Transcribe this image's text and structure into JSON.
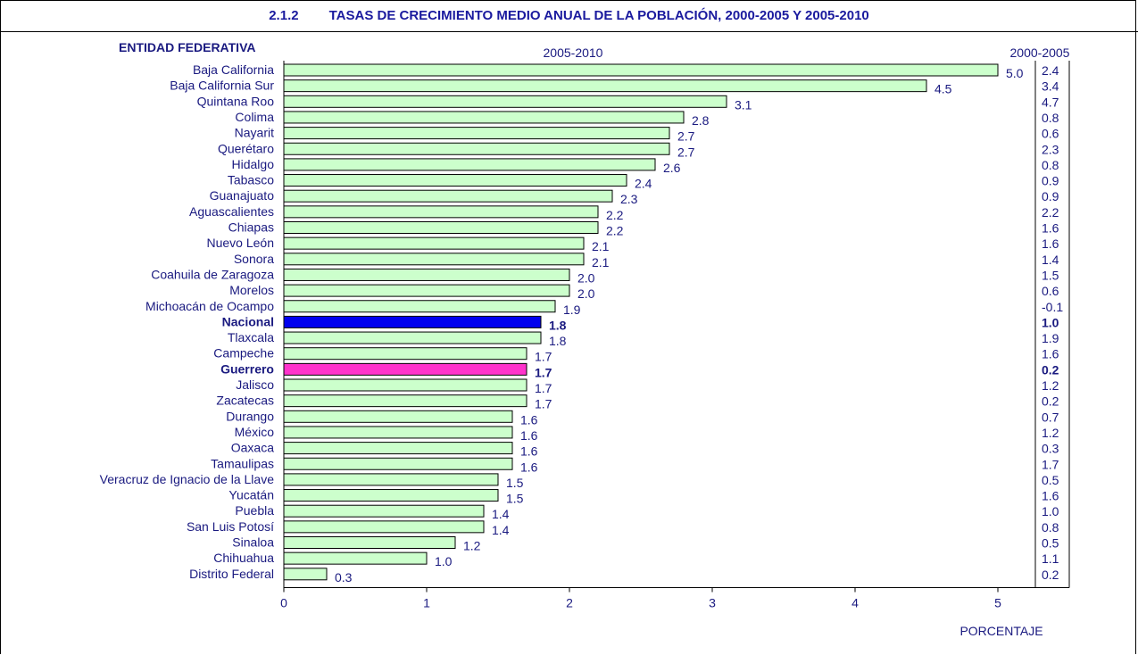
{
  "title_number": "2.1.2",
  "title_text": "TASAS DE CRECIMIENTO MEDIO ANUAL DE LA POBLACIÓN, 2000-2005 Y 2005-2010",
  "chart_data": {
    "type": "bar",
    "orientation": "horizontal",
    "category_header": "ENTIDAD FEDERATIVA",
    "series_header": "2005-2010",
    "side_column_header": "2000-2005",
    "xlabel": "PORCENTAJE",
    "xlim": [
      0,
      5.5
    ],
    "xticks": [
      0,
      1,
      2,
      3,
      4,
      5
    ],
    "colors": {
      "default": "#ccffcc",
      "national": "#0000ee",
      "state": "#ff33cc"
    },
    "rows": [
      {
        "name": "Baja California",
        "v2010": "5.0",
        "v2005": "2.4"
      },
      {
        "name": "Baja California Sur",
        "v2010": "4.5",
        "v2005": "3.4"
      },
      {
        "name": "Quintana Roo",
        "v2010": "3.1",
        "v2005": "4.7"
      },
      {
        "name": "Colima",
        "v2010": "2.8",
        "v2005": "0.8"
      },
      {
        "name": "Nayarit",
        "v2010": "2.7",
        "v2005": "0.6"
      },
      {
        "name": "Querétaro",
        "v2010": "2.7",
        "v2005": "2.3"
      },
      {
        "name": "Hidalgo",
        "v2010": "2.6",
        "v2005": "0.8"
      },
      {
        "name": "Tabasco",
        "v2010": "2.4",
        "v2005": "0.9"
      },
      {
        "name": "Guanajuato",
        "v2010": "2.3",
        "v2005": "0.9"
      },
      {
        "name": "Aguascalientes",
        "v2010": "2.2",
        "v2005": "2.2"
      },
      {
        "name": "Chiapas",
        "v2010": "2.2",
        "v2005": "1.6"
      },
      {
        "name": "Nuevo León",
        "v2010": "2.1",
        "v2005": "1.6"
      },
      {
        "name": "Sonora",
        "v2010": "2.1",
        "v2005": "1.4"
      },
      {
        "name": "Coahuila de Zaragoza",
        "v2010": "2.0",
        "v2005": "1.5"
      },
      {
        "name": "Morelos",
        "v2010": "2.0",
        "v2005": "0.6"
      },
      {
        "name": "Michoacán de Ocampo",
        "v2010": "1.9",
        "v2005": "-0.1"
      },
      {
        "name": "Nacional",
        "v2010": "1.8",
        "v2005": "1.0",
        "highlight": "national"
      },
      {
        "name": "Tlaxcala",
        "v2010": "1.8",
        "v2005": "1.9"
      },
      {
        "name": "Campeche",
        "v2010": "1.7",
        "v2005": "1.6"
      },
      {
        "name": "Guerrero",
        "v2010": "1.7",
        "v2005": "0.2",
        "highlight": "state"
      },
      {
        "name": "Jalisco",
        "v2010": "1.7",
        "v2005": "1.2"
      },
      {
        "name": "Zacatecas",
        "v2010": "1.7",
        "v2005": "0.2"
      },
      {
        "name": "Durango",
        "v2010": "1.6",
        "v2005": "0.7"
      },
      {
        "name": "México",
        "v2010": "1.6",
        "v2005": "1.2"
      },
      {
        "name": "Oaxaca",
        "v2010": "1.6",
        "v2005": "0.3"
      },
      {
        "name": "Tamaulipas",
        "v2010": "1.6",
        "v2005": "1.7"
      },
      {
        "name": "Veracruz de Ignacio de la Llave",
        "v2010": "1.5",
        "v2005": "0.5"
      },
      {
        "name": "Yucatán",
        "v2010": "1.5",
        "v2005": "1.6"
      },
      {
        "name": "Puebla",
        "v2010": "1.4",
        "v2005": "1.0"
      },
      {
        "name": "San Luis Potosí",
        "v2010": "1.4",
        "v2005": "0.8"
      },
      {
        "name": "Sinaloa",
        "v2010": "1.2",
        "v2005": "0.5"
      },
      {
        "name": "Chihuahua",
        "v2010": "1.0",
        "v2005": "1.1"
      },
      {
        "name": "Distrito Federal",
        "v2010": "0.3",
        "v2005": "0.2"
      }
    ]
  }
}
